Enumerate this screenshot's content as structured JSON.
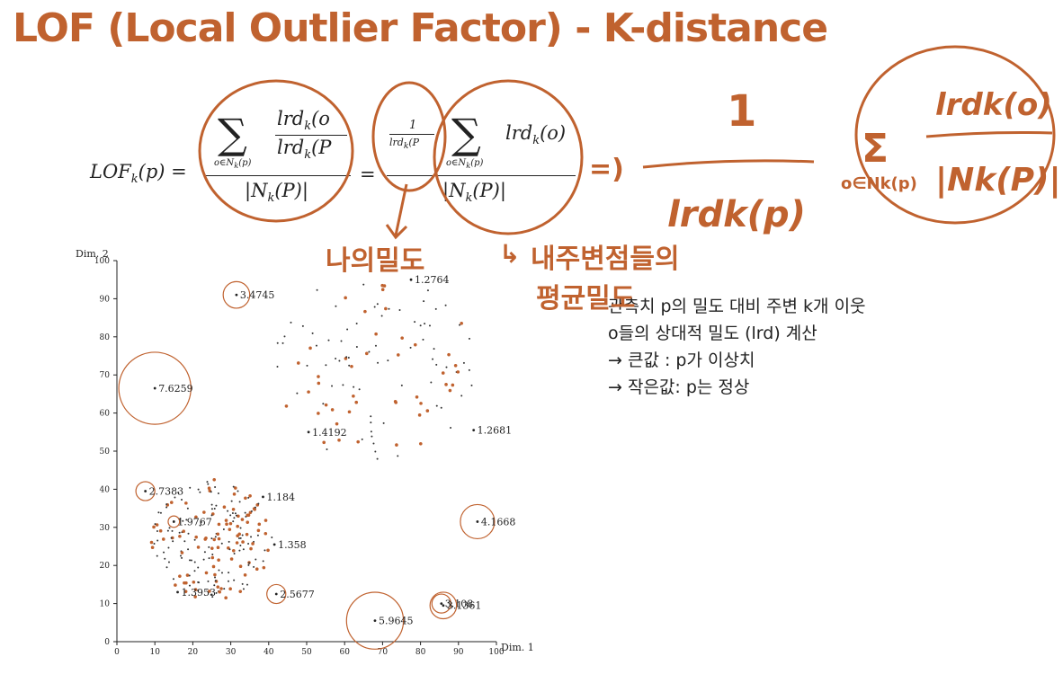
{
  "title": "LOF (Local Outlier Factor) - K-distance",
  "formula": {
    "lhs": "LOF",
    "lhs_sub": "k",
    "lhs_arg": "(p) =",
    "sum_sub_1": "o∈N",
    "sum_sub_1b": "k",
    "sum_sub_1c": "(p)",
    "num1_top": "lrd",
    "num1_top_sub": "k",
    "num1_top_arg": "(o",
    "num1_bot": "lrd",
    "num1_bot_sub": "k",
    "num1_bot_arg": "(P",
    "den1": "|N",
    "den1_sub": "k",
    "den1_arg": "(P)|",
    "equals": "=",
    "frac_small_top": "1",
    "frac_small_bot": "lrd",
    "frac_small_bot_sub": "k",
    "frac_small_bot_arg": "(P",
    "sum_sub_2": "o∈N",
    "sum_sub_2b": "k",
    "sum_sub_2c": "(p)",
    "num2": "lrd",
    "num2_sub": "k",
    "num2_arg": "(o)",
    "den2": "|N",
    "den2_sub": "k",
    "den2_arg": "(P)|"
  },
  "handwriting": {
    "arrow_eq": "=)",
    "one": "1",
    "lrdkp": "lrdk(p)",
    "sigma": "Σ",
    "sum_sub": "o∈Nk(p)",
    "lrdko": "lrdk(o)",
    "nkp": "|Nk(P)|",
    "my_density": "나의밀도",
    "neighbor_avg_1": "내주변점들의",
    "neighbor_avg_2": "평균밀도",
    "arrow_glyph": "↳"
  },
  "note": {
    "line1": "관측치 p의 밀도 대비 주변 k개 이웃",
    "line2": "o들의 상대적 밀도 (lrd) 계산",
    "line3": "→ 큰값 : p가 이상치",
    "line4": "→ 작은값: p는 정상"
  },
  "accent_color": "#c0622f",
  "chart_data": {
    "type": "scatter",
    "xlabel": "Dim. 1",
    "ylabel": "Dim. 2",
    "xlim": [
      0,
      100
    ],
    "ylim": [
      0,
      100
    ],
    "xticks": [
      "0",
      "10",
      "20",
      "30",
      "40",
      "50",
      "60",
      "70",
      "80",
      "90",
      "100"
    ],
    "yticks": [
      "0",
      "10",
      "20",
      "30",
      "40",
      "50",
      "60",
      "70",
      "80",
      "90",
      "100"
    ],
    "annotations": [
      {
        "label": "3.4745",
        "x": 31.5,
        "y": 91,
        "r": 3.5
      },
      {
        "label": "7.6259",
        "x": 10,
        "y": 66.5,
        "r": 9.5
      },
      {
        "label": "1.2764",
        "x": 77.5,
        "y": 95,
        "r": 0
      },
      {
        "label": "1.4192",
        "x": 50.5,
        "y": 55,
        "r": 0
      },
      {
        "label": "1.2681",
        "x": 94,
        "y": 55.5,
        "r": 0
      },
      {
        "label": "2.7383",
        "x": 7.5,
        "y": 39.5,
        "r": 2.5
      },
      {
        "label": "1.9767",
        "x": 15,
        "y": 31.5,
        "r": 1.5
      },
      {
        "label": "1.184",
        "x": 38.5,
        "y": 38,
        "r": 0
      },
      {
        "label": "1.358",
        "x": 41.5,
        "y": 25.5,
        "r": 0
      },
      {
        "label": "4.1668",
        "x": 95,
        "y": 31.5,
        "r": 4.5
      },
      {
        "label": "2.5677",
        "x": 42,
        "y": 12.5,
        "r": 2.5
      },
      {
        "label": "1.3953",
        "x": 16,
        "y": 13,
        "r": 0
      },
      {
        "label": "5.9645",
        "x": 68,
        "y": 5.5,
        "r": 7.5
      },
      {
        "label": "3.108",
        "x": 85.5,
        "y": 10,
        "r": 2.5
      },
      {
        "label": "3.1361",
        "x": 86,
        "y": 9.5,
        "r": 3.5
      }
    ],
    "grid": false
  }
}
